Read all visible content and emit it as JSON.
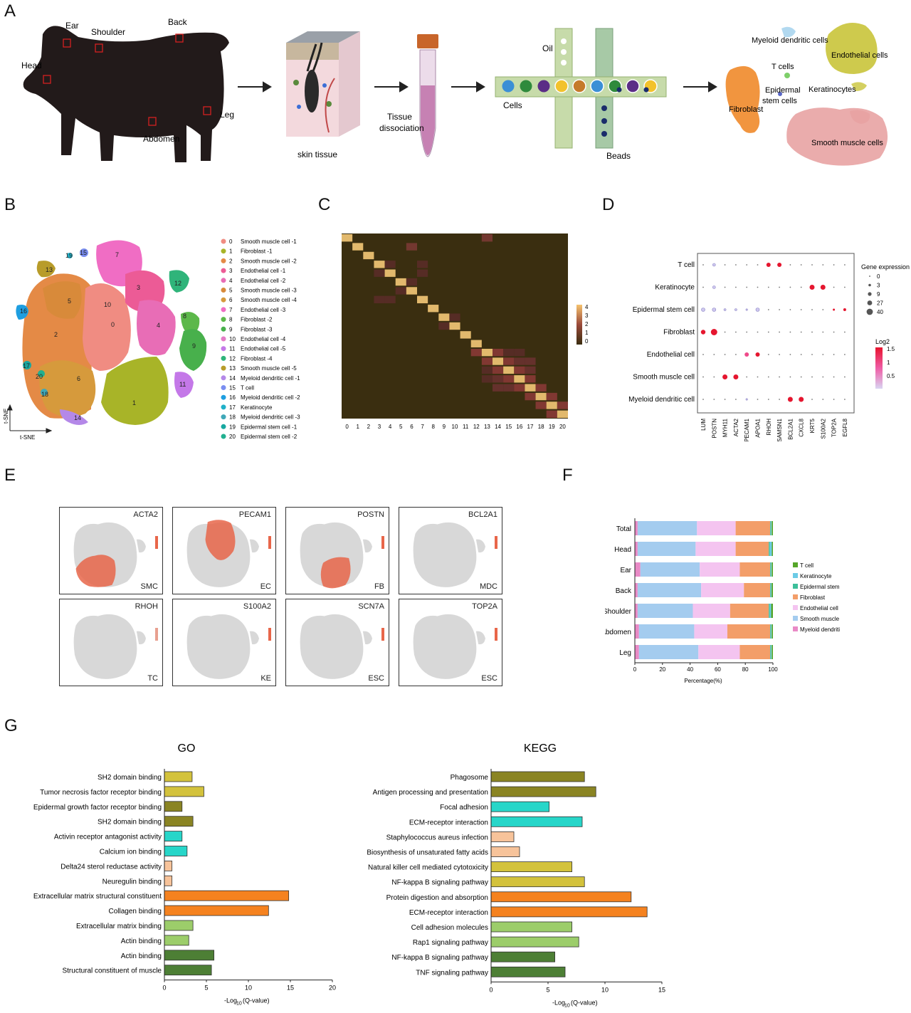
{
  "panels": {
    "a": "A",
    "b": "B",
    "c": "C",
    "d": "D",
    "e": "E",
    "f": "F",
    "g": "G"
  },
  "panelA": {
    "regions": [
      "Ear",
      "Shoulder",
      "Back",
      "Head",
      "Leg",
      "Abdomen"
    ],
    "skin_label": "skin tissue",
    "dissociation_label": "Tissue\ndissociation",
    "oil_label": "Oil",
    "cells_label": "Cells",
    "beads_label": "Beads",
    "clusters": [
      "Myeloid dendritic cells",
      "Endothelial cells",
      "T cells",
      "Epidermal\nstem cells",
      "Keratinocytes",
      "Fibroblast",
      "Smooth muscle cells"
    ],
    "colors": {
      "pig": "#221a1a",
      "droplet1": "#3b8fd6",
      "droplet2": "#2f8a3c",
      "droplet3": "#5b2d86",
      "droplet4": "#f2c22c",
      "droplet5": "#c57a2a",
      "fibroblast": "#f08a2a",
      "endothelial": "#c9c43a",
      "smc": "#e8a3a3"
    }
  },
  "panelB": {
    "axis_y": "t-SNE",
    "axis_x": "t-SNE",
    "legend": [
      {
        "id": "0",
        "name": "Smooth muscle cell -1",
        "color": "#f08c82"
      },
      {
        "id": "1",
        "name": "Fibroblast -1",
        "color": "#a8b428"
      },
      {
        "id": "2",
        "name": "Smooth muscle cell -2",
        "color": "#e48a46"
      },
      {
        "id": "3",
        "name": "Endothelial cell -1",
        "color": "#ec5b96"
      },
      {
        "id": "4",
        "name": "Endothelial cell -2",
        "color": "#e86db6"
      },
      {
        "id": "5",
        "name": "Smooth muscle cell -3",
        "color": "#d88a3a"
      },
      {
        "id": "6",
        "name": "Smooth muscle cell -4",
        "color": "#d69a3c"
      },
      {
        "id": "7",
        "name": "Endothelial cell -3",
        "color": "#f06dc4"
      },
      {
        "id": "8",
        "name": "Fibroblast -2",
        "color": "#5cb84a"
      },
      {
        "id": "9",
        "name": "Fibroblast -3",
        "color": "#48b04c"
      },
      {
        "id": "10",
        "name": "Endothelial cell -4",
        "color": "#e47cc6"
      },
      {
        "id": "11",
        "name": "Endothelial cell -5",
        "color": "#c478e8"
      },
      {
        "id": "12",
        "name": "Fibroblast -4",
        "color": "#2fb47a"
      },
      {
        "id": "13",
        "name": "Smooth muscle cell -5",
        "color": "#b89c2a"
      },
      {
        "id": "14",
        "name": "Myeloid dendritic cell -1",
        "color": "#b488e8"
      },
      {
        "id": "15",
        "name": "T cell",
        "color": "#7a8ef0"
      },
      {
        "id": "16",
        "name": "Myeloid dendritic cell -2",
        "color": "#1e9ee0"
      },
      {
        "id": "17",
        "name": "Keratinocyte",
        "color": "#20b0c8"
      },
      {
        "id": "18",
        "name": "Myeloid dendritic cell -3",
        "color": "#40a8b8"
      },
      {
        "id": "19",
        "name": "Epidermal stem cell -1",
        "color": "#18a8a0"
      },
      {
        "id": "20",
        "name": "Epidermal stem cell -2",
        "color": "#22b090"
      }
    ]
  },
  "panelC": {
    "x_ticks": [
      "0",
      "1",
      "2",
      "3",
      "4",
      "5",
      "6",
      "7",
      "8",
      "9",
      "10",
      "11",
      "12",
      "13",
      "14",
      "15",
      "16",
      "17",
      "18",
      "19",
      "20"
    ],
    "scale_ticks": [
      "4",
      "3",
      "2",
      "1",
      "0"
    ]
  },
  "panelD": {
    "cell_types": [
      "T cell",
      "Keratinocyte",
      "Epidermal stem cell",
      "Fibroblast",
      "Endothelial cell",
      "Smooth muscle cell",
      "Myeloid dendritic cell"
    ],
    "genes": [
      "LUM",
      "POSTN",
      "MYH11",
      "ACTA2",
      "PECAM1",
      "APOA1",
      "RHOH",
      "SAMSN1",
      "BCL2A1",
      "CXCL8",
      "KRT5",
      "S100A2",
      "TOP2A",
      "EGFL8"
    ],
    "size_legend_title": "Gene expression",
    "size_legend": [
      "0",
      "3",
      "9",
      "27",
      "40"
    ],
    "color_legend_title": "Log2",
    "color_legend": [
      "1.5",
      "1",
      "0.5"
    ],
    "dots": [
      {
        "row": 0,
        "col": 1,
        "s": 2,
        "c": 0.3
      },
      {
        "row": 0,
        "col": 6,
        "s": 3,
        "c": 1.6
      },
      {
        "row": 0,
        "col": 7,
        "s": 3,
        "c": 1.6
      },
      {
        "row": 1,
        "col": 1,
        "s": 2,
        "c": 0.3
      },
      {
        "row": 1,
        "col": 10,
        "s": 3.5,
        "c": 1.6
      },
      {
        "row": 1,
        "col": 11,
        "s": 3.5,
        "c": 1.6
      },
      {
        "row": 2,
        "col": 0,
        "s": 2.5,
        "c": 0.3
      },
      {
        "row": 2,
        "col": 1,
        "s": 2.5,
        "c": 0.3
      },
      {
        "row": 2,
        "col": 2,
        "s": 1.5,
        "c": 0.3
      },
      {
        "row": 2,
        "col": 3,
        "s": 1.5,
        "c": 0.3
      },
      {
        "row": 2,
        "col": 4,
        "s": 1.2,
        "c": 0.3
      },
      {
        "row": 2,
        "col": 5,
        "s": 2.5,
        "c": 0.3
      },
      {
        "row": 2,
        "col": 12,
        "s": 1.5,
        "c": 1.6
      },
      {
        "row": 2,
        "col": 13,
        "s": 2,
        "c": 1.6
      },
      {
        "row": 3,
        "col": 0,
        "s": 3.2,
        "c": 1.6
      },
      {
        "row": 3,
        "col": 1,
        "s": 4.5,
        "c": 1.6
      },
      {
        "row": 4,
        "col": 4,
        "s": 3,
        "c": 1.2
      },
      {
        "row": 4,
        "col": 5,
        "s": 3,
        "c": 1.4
      },
      {
        "row": 5,
        "col": 2,
        "s": 3.5,
        "c": 1.6
      },
      {
        "row": 5,
        "col": 3,
        "s": 3.5,
        "c": 1.6
      },
      {
        "row": 6,
        "col": 4,
        "s": 1.2,
        "c": 0.3
      },
      {
        "row": 6,
        "col": 8,
        "s": 3.5,
        "c": 1.6
      },
      {
        "row": 6,
        "col": 9,
        "s": 3.5,
        "c": 1.6
      }
    ]
  },
  "panelE": {
    "maps": [
      {
        "gene": "ACTA2",
        "type": "SMC"
      },
      {
        "gene": "PECAM1",
        "type": "EC"
      },
      {
        "gene": "POSTN",
        "type": "FB"
      },
      {
        "gene": "BCL2A1",
        "type": "MDC"
      },
      {
        "gene": "RHOH",
        "type": "TC"
      },
      {
        "gene": "S100A2",
        "type": "KE"
      },
      {
        "gene": "SCN7A",
        "type": "ESC"
      },
      {
        "gene": "TOP2A",
        "type": "ESC"
      }
    ]
  },
  "panelF": {
    "chart_data": {
      "type": "bar",
      "orientation": "horizontal-stacked",
      "categories": [
        "Total",
        "Head",
        "Ear",
        "Back",
        "Shoulder",
        "Abdomen",
        "Leg"
      ],
      "xlabel": "Percentage(%)",
      "xlim": [
        0,
        100
      ],
      "x_ticks": [
        "0",
        "20",
        "40",
        "60",
        "80",
        "100"
      ],
      "legend_placement": "right",
      "series": [
        {
          "name": "Myeloid dendritic cell",
          "color": "#e98ac6",
          "values": [
            2,
            2,
            4,
            2,
            2,
            3,
            3
          ]
        },
        {
          "name": "Smooth muscle cell",
          "color": "#a4ccef",
          "values": [
            43,
            42,
            43,
            46,
            40,
            40,
            43
          ]
        },
        {
          "name": "Endothelial cell",
          "color": "#f4c4f0",
          "values": [
            28,
            29,
            29,
            31,
            27,
            24,
            30
          ]
        },
        {
          "name": "Fibroblast",
          "color": "#f39e69",
          "values": [
            25,
            24,
            22,
            19,
            28,
            31,
            22
          ]
        },
        {
          "name": "Epidermal stem cell",
          "color": "#3dbf9a",
          "values": [
            0.6,
            0.7,
            0.6,
            0.5,
            0.7,
            0.6,
            0.6
          ]
        },
        {
          "name": "Keratinocyte",
          "color": "#6ccbe6",
          "values": [
            0.5,
            1.5,
            0.5,
            0.5,
            1,
            0.5,
            0.5
          ]
        },
        {
          "name": "T cell",
          "color": "#56a62a",
          "values": [
            0.9,
            0.8,
            0.9,
            1,
            1.3,
            0.9,
            0.9
          ]
        }
      ]
    }
  },
  "panelG": {
    "go": {
      "title": "GO",
      "chart_data": {
        "type": "bar",
        "orientation": "horizontal",
        "categories": [
          "SH2 domain binding",
          "Tumor necrosis factor receptor binding",
          "Epidermal growth factor receptor binding",
          "SH2 domain binding",
          "Activin receptor antagonist activity",
          "Calcium ion binding",
          "Delta24 sterol reductase activity",
          "Neuregulin binding",
          "Extracellular matrix structural constituent",
          "Collagen binding",
          "Extracellular matrix binding",
          "Actin binding",
          "Actin binding",
          "Structural  constituent of muscle"
        ],
        "values": [
          3.3,
          4.7,
          2.1,
          3.4,
          2.1,
          2.7,
          0.9,
          0.9,
          14.8,
          12.4,
          3.4,
          2.9,
          5.9,
          5.6
        ],
        "colors": [
          "#d3c23c",
          "#d3c23c",
          "#8a8423",
          "#8a8423",
          "#27d6c9",
          "#27d6c9",
          "#f7c39a",
          "#f7c39a",
          "#f5821f",
          "#f5821f",
          "#9ccd6a",
          "#9ccd6a",
          "#4d7f35",
          "#4d7f35"
        ],
        "xlim": [
          0,
          20
        ],
        "x_ticks": [
          "0",
          "5",
          "10",
          "15",
          "20"
        ],
        "xlabel": "-Log",
        "xlabel_sub": "10",
        "xlabel_tail": "(Q-value)"
      }
    },
    "kegg": {
      "title": "KEGG",
      "chart_data": {
        "type": "bar",
        "orientation": "horizontal",
        "categories": [
          "Phagosome",
          "Antigen processing and presentation",
          "Focal adhesion",
          "ECM-receptor interaction",
          "Staphylococcus aureus infection",
          "Biosynthesis of unsaturated fatty acids",
          "Natural killer cell mediated cytotoxicity",
          "NF-kappa B signaling pathway",
          "Protein digestion and absorption",
          "ECM-receptor interaction",
          "Cell adhesion molecules",
          "Rap1 signaling pathway",
          "NF-kappa B signaling pathway",
          "TNF signaling pathway"
        ],
        "values": [
          8.2,
          9.2,
          5.1,
          8.0,
          2.0,
          2.5,
          7.1,
          8.2,
          12.3,
          13.7,
          7.1,
          7.7,
          5.6,
          6.5
        ],
        "colors": [
          "#8a8423",
          "#8a8423",
          "#27d6c9",
          "#27d6c9",
          "#f7c39a",
          "#f7c39a",
          "#d3c23c",
          "#d3c23c",
          "#f5821f",
          "#f5821f",
          "#9ccd6a",
          "#9ccd6a",
          "#4d7f35",
          "#4d7f35"
        ],
        "xlim": [
          0,
          15
        ],
        "x_ticks": [
          "0",
          "5",
          "10",
          "15"
        ],
        "xlabel": "-Log",
        "xlabel_sub": "10",
        "xlabel_tail": "(Q-value)"
      }
    },
    "legend": [
      {
        "name": "Myeloid dendritic cell",
        "color": "#8a8423"
      },
      {
        "name": "Epidermal stem cell",
        "color": "#27d6c9"
      },
      {
        "name": "Keratinocyte",
        "color": "#f7c39a"
      },
      {
        "name": "T cell",
        "color": "#d3c23c"
      },
      {
        "name": "Fibroblast",
        "color": "#f5821f"
      },
      {
        "name": "Endothelial cell",
        "color": "#9ccd6a"
      },
      {
        "name": "Smooth muscle cell",
        "color": "#4d7f35"
      }
    ]
  }
}
